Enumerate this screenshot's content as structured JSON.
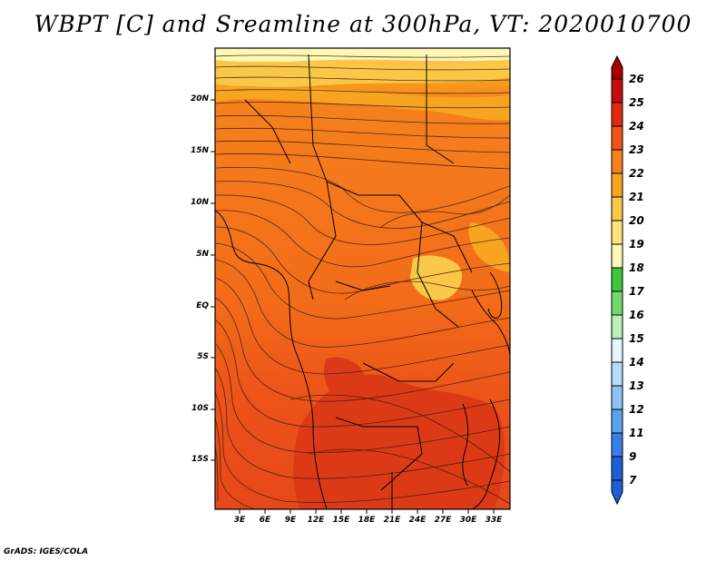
{
  "title": "WBPT [C] and Sreamline at 300hPa, VT: 2020010700",
  "credit": "GrADS: IGES/COLA",
  "map": {
    "lat_labels": [
      "20N",
      "15N",
      "10N",
      "5N",
      "EQ",
      "5S",
      "10S",
      "15S"
    ],
    "lon_labels": [
      "3E",
      "6E",
      "9E",
      "12E",
      "15E",
      "18E",
      "21E",
      "24E",
      "27E",
      "30E",
      "33E"
    ]
  },
  "colorbar": {
    "labels": [
      "26",
      "25",
      "24",
      "23",
      "22",
      "21",
      "20",
      "19",
      "18",
      "17",
      "16",
      "15",
      "14",
      "13",
      "12",
      "11",
      "9",
      "7"
    ],
    "colors": [
      "#a50000",
      "#c40d0d",
      "#e02a10",
      "#f05418",
      "#f5801d",
      "#f7a420",
      "#fac848",
      "#fde37c",
      "#fef7b5",
      "#3fc43d",
      "#73d96c",
      "#b9eeb5",
      "#e4f7ff",
      "#b7dcfa",
      "#8dc3f5",
      "#5aa1ee",
      "#3680e8",
      "#1c5fd9"
    ]
  }
}
